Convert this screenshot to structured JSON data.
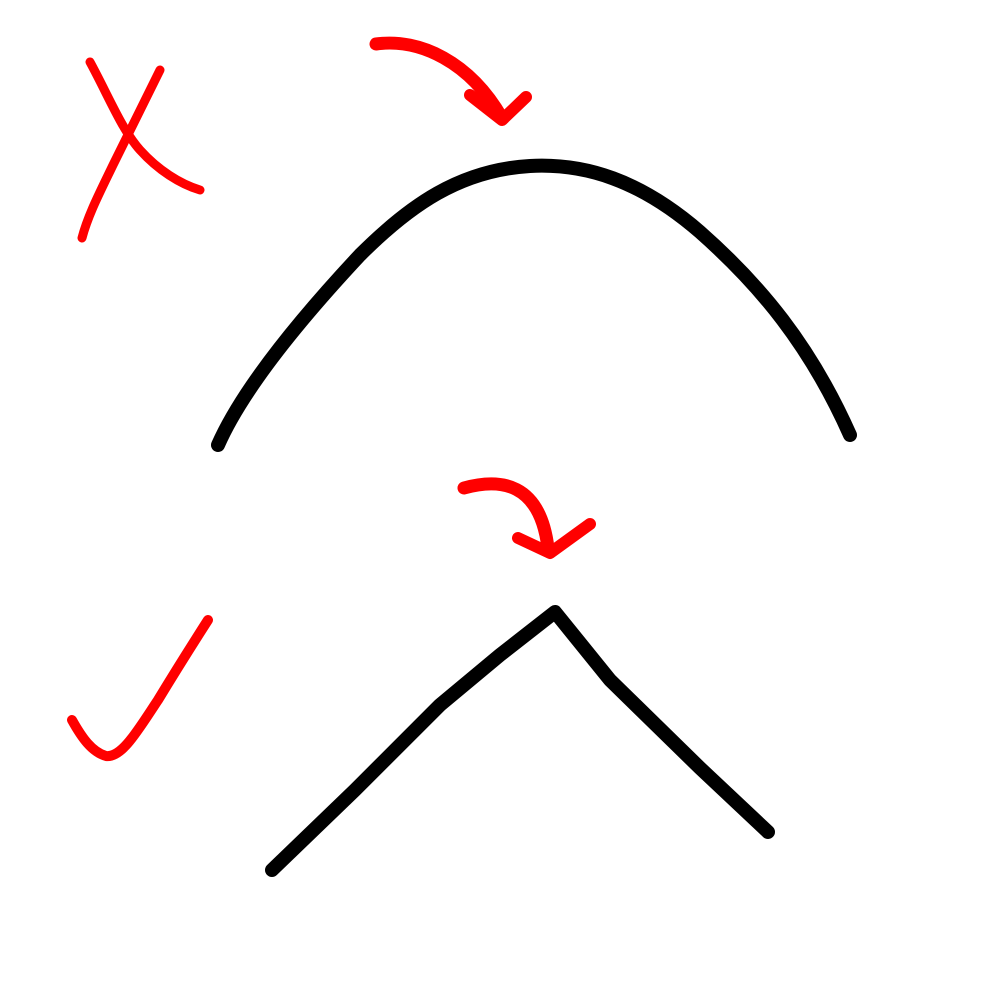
{
  "colors": {
    "background": "#ffffff",
    "ink": "#000000",
    "annotation": "#ff0000"
  },
  "panels": [
    {
      "verdict": "incorrect",
      "mark_icon": "cross-mark-icon",
      "pointer_icon": "curved-arrow-icon",
      "shape": "rounded-curve"
    },
    {
      "verdict": "correct",
      "mark_icon": "check-mark-icon",
      "pointer_icon": "curved-arrow-icon",
      "shape": "sharp-peak"
    }
  ]
}
